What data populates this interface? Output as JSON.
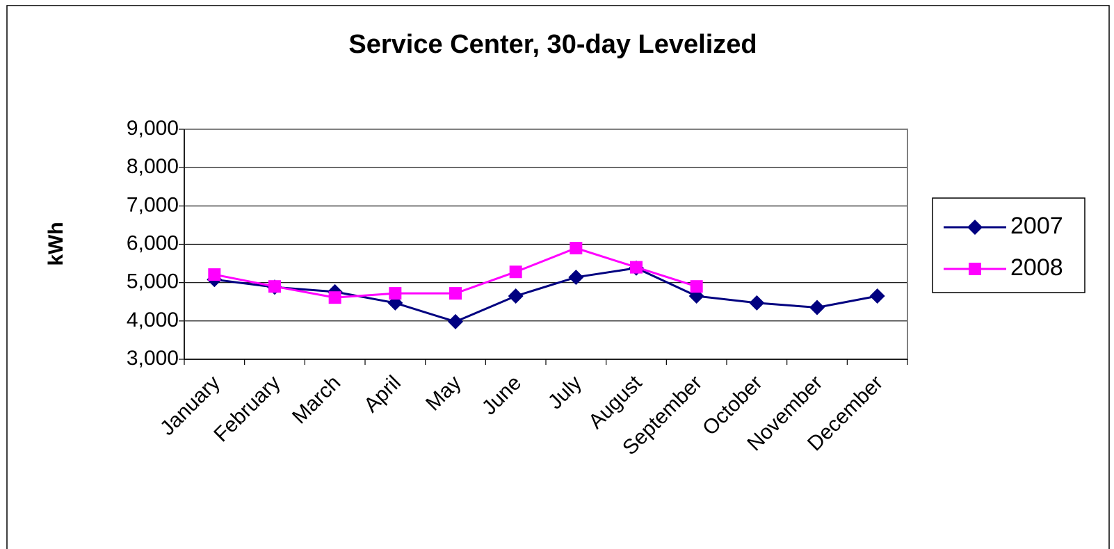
{
  "chart_data": {
    "type": "line",
    "title": "Service Center, 30-day Levelized",
    "ylabel": "kWh",
    "categories": [
      "January",
      "February",
      "March",
      "April",
      "May",
      "June",
      "July",
      "August",
      "September",
      "October",
      "November",
      "December"
    ],
    "series": [
      {
        "name": "2007",
        "color": "#000080",
        "marker": "diamond",
        "values": [
          5080,
          4880,
          4760,
          4470,
          3980,
          4650,
          5140,
          5380,
          4650,
          4470,
          4350,
          4650
        ]
      },
      {
        "name": "2008",
        "color": "#ff00ff",
        "marker": "square",
        "values": [
          5210,
          4900,
          4610,
          4720,
          4720,
          5280,
          5900,
          5400,
          4900,
          null,
          null,
          null
        ]
      }
    ],
    "ylim": [
      3000,
      9000
    ],
    "yticks": [
      {
        "value": 3000,
        "label": "3,000"
      },
      {
        "value": 4000,
        "label": "4,000"
      },
      {
        "value": 5000,
        "label": "5,000"
      },
      {
        "value": 6000,
        "label": "6,000"
      },
      {
        "value": 7000,
        "label": "7,000"
      },
      {
        "value": 8000,
        "label": "8,000"
      },
      {
        "value": 9000,
        "label": "9,000"
      }
    ],
    "grid": true,
    "legend": "right"
  }
}
